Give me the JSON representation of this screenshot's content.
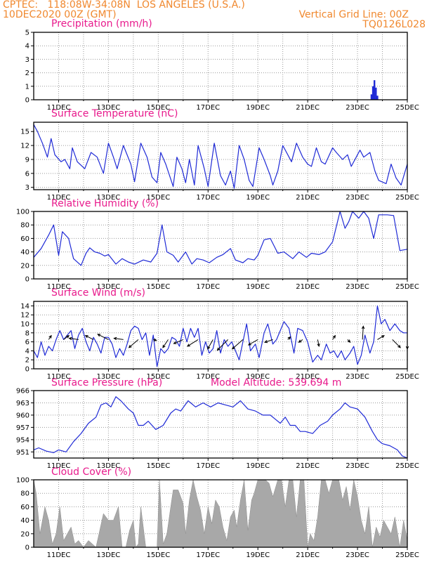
{
  "header": {
    "line1_left": "CPTEC:   118:08W-34:08N  LOS ANGELES (U.S.A.)",
    "line2_left": "10DEC2020 00Z (GMT)",
    "line2_right": "Vertical Grid Line: 00Z",
    "line3_right": "TQ0126L028"
  },
  "colors": {
    "header": "#f0882e",
    "title": "#e81a8c",
    "line": "#1f2ad6",
    "cloud": "#a8a8a8",
    "grid": "#9a9a9a"
  },
  "chart_data": [
    {
      "id": "precip",
      "type": "bar",
      "title": "Precipitation (mm/h)",
      "ylim": [
        0,
        5
      ],
      "yticks": [
        0,
        1,
        2,
        3,
        4,
        5
      ],
      "x_unit": "days after 10DEC2020 00Z",
      "xtick_labels": [
        "11DEC",
        "13DEC",
        "15DEC",
        "17DEC",
        "19DEC",
        "21DEC",
        "23DEC",
        "25DEC"
      ],
      "x": [
        13.56,
        13.62,
        13.68,
        13.74,
        13.8
      ],
      "values": [
        0.4,
        1.0,
        1.45,
        0.9,
        0.3
      ]
    },
    {
      "id": "temp",
      "type": "line",
      "title": "Surface Temperature (nC)",
      "ylim": [
        2.5,
        17
      ],
      "yticks": [
        3,
        6,
        9,
        12,
        15
      ],
      "xtick_labels": [
        "11DEC",
        "13DEC",
        "15DEC",
        "17DEC",
        "19DEC",
        "21DEC",
        "23DEC",
        "25DEC"
      ],
      "x": [
        0,
        0.15,
        0.35,
        0.55,
        0.7,
        0.85,
        1.1,
        1.25,
        1.45,
        1.55,
        1.75,
        2.05,
        2.3,
        2.55,
        2.8,
        3.0,
        3.2,
        3.35,
        3.6,
        3.9,
        4.05,
        4.3,
        4.55,
        4.75,
        4.95,
        5.1,
        5.3,
        5.6,
        5.75,
        5.95,
        6.1,
        6.25,
        6.45,
        6.6,
        6.85,
        7.0,
        7.25,
        7.5,
        7.7,
        7.9,
        8.05,
        8.25,
        8.45,
        8.65,
        8.8,
        9.05,
        9.25,
        9.5,
        9.6,
        9.8,
        10.0,
        10.2,
        10.35,
        10.55,
        10.8,
        11.0,
        11.15,
        11.35,
        11.55,
        11.7,
        12.0,
        12.15,
        12.4,
        12.6,
        12.75,
        13.1,
        13.25,
        13.5,
        13.7,
        13.85,
        14.15,
        14.35,
        14.55,
        14.75,
        15.0
      ],
      "values": [
        16.5,
        15,
        12.5,
        9.5,
        13.5,
        10,
        8.5,
        9,
        7,
        11.5,
        8.5,
        7,
        10.5,
        9.5,
        6,
        12.5,
        9.5,
        7,
        12,
        8,
        4.2,
        12.5,
        9.5,
        5.2,
        4,
        10.5,
        8,
        3.2,
        9.5,
        7,
        4,
        9,
        3.5,
        12,
        7,
        3.2,
        12.5,
        5.5,
        3.5,
        6.5,
        2.8,
        12,
        9,
        4.5,
        3.2,
        11.5,
        9,
        5.5,
        3.5,
        6.5,
        12,
        10,
        8.5,
        12.5,
        9.5,
        8,
        7.5,
        11.5,
        8.5,
        8,
        11.5,
        10.5,
        9,
        10,
        7.5,
        11,
        9.5,
        10.5,
        6.5,
        4.5,
        3.8,
        8,
        5,
        3.5,
        8
      ]
    },
    {
      "id": "rh",
      "type": "line",
      "title": "Relative Humidity (%)",
      "ylim": [
        0,
        100
      ],
      "yticks": [
        0,
        20,
        40,
        60,
        80,
        100
      ],
      "xtick_labels": [
        "11DEC",
        "13DEC",
        "15DEC",
        "17DEC",
        "19DEC",
        "21DEC",
        "23DEC",
        "25DEC"
      ],
      "x": [
        0,
        0.3,
        0.6,
        0.8,
        1.0,
        1.15,
        1.4,
        1.6,
        1.9,
        2.1,
        2.25,
        2.45,
        2.65,
        2.85,
        3.0,
        3.3,
        3.55,
        3.8,
        4.05,
        4.4,
        4.7,
        4.95,
        5.15,
        5.35,
        5.6,
        5.8,
        6.1,
        6.35,
        6.55,
        6.8,
        7.05,
        7.35,
        7.6,
        7.9,
        8.1,
        8.4,
        8.6,
        8.85,
        9.0,
        9.25,
        9.5,
        9.8,
        10.05,
        10.4,
        10.65,
        10.95,
        11.15,
        11.45,
        11.7,
        12.0,
        12.3,
        12.5,
        12.65,
        12.8,
        13.05,
        13.25,
        13.45,
        13.65,
        13.85,
        14.2,
        14.45,
        14.7,
        15.0
      ],
      "values": [
        32,
        45,
        65,
        80,
        35,
        70,
        60,
        30,
        20,
        38,
        46,
        40,
        38,
        34,
        36,
        22,
        30,
        25,
        22,
        28,
        25,
        38,
        80,
        40,
        35,
        25,
        40,
        22,
        30,
        28,
        24,
        32,
        36,
        45,
        28,
        24,
        30,
        28,
        35,
        58,
        60,
        38,
        40,
        30,
        40,
        32,
        38,
        36,
        40,
        55,
        100,
        75,
        85,
        100,
        90,
        100,
        90,
        60,
        95,
        95,
        94,
        42,
        44
      ]
    },
    {
      "id": "wind",
      "type": "line",
      "title": "Surface Wind (m/s)",
      "ylim": [
        0,
        15
      ],
      "yticks": [
        0,
        2,
        4,
        6,
        8,
        10,
        12,
        14
      ],
      "xtick_labels": [
        "11DEC",
        "13DEC",
        "15DEC",
        "17DEC",
        "19DEC",
        "21DEC",
        "23DEC",
        "25DEC"
      ],
      "x": [
        0,
        0.15,
        0.3,
        0.45,
        0.6,
        0.75,
        0.9,
        1.05,
        1.2,
        1.35,
        1.5,
        1.65,
        1.8,
        1.95,
        2.1,
        2.25,
        2.4,
        2.55,
        2.7,
        2.85,
        3.0,
        3.15,
        3.3,
        3.45,
        3.6,
        3.75,
        3.9,
        4.05,
        4.2,
        4.35,
        4.5,
        4.65,
        4.8,
        4.95,
        5.1,
        5.25,
        5.4,
        5.55,
        5.7,
        5.85,
        6.0,
        6.15,
        6.3,
        6.45,
        6.6,
        6.75,
        6.9,
        7.05,
        7.2,
        7.35,
        7.5,
        7.65,
        7.8,
        7.95,
        8.1,
        8.25,
        8.4,
        8.55,
        8.7,
        8.9,
        9.05,
        9.25,
        9.4,
        9.6,
        9.75,
        9.9,
        10.05,
        10.25,
        10.45,
        10.6,
        10.8,
        11.0,
        11.2,
        11.4,
        11.55,
        11.75,
        11.9,
        12.05,
        12.2,
        12.35,
        12.5,
        12.7,
        12.85,
        13.0,
        13.15,
        13.3,
        13.5,
        13.65,
        13.8,
        13.95,
        14.1,
        14.3,
        14.5,
        14.7,
        14.85,
        15.0
      ],
      "values": [
        4,
        2.5,
        6,
        3,
        5,
        4,
        6.5,
        8.5,
        6.5,
        7.5,
        8.5,
        4.5,
        7.5,
        9,
        6,
        4,
        7,
        5.5,
        3.5,
        7,
        7,
        5.5,
        2.5,
        4.5,
        3,
        5.5,
        8.5,
        9.5,
        9,
        6.5,
        8,
        3,
        7.5,
        0.5,
        4.5,
        3.5,
        4.5,
        7,
        6.5,
        5,
        9,
        6,
        9,
        7,
        9,
        3,
        6,
        3.5,
        4.5,
        8.5,
        3.5,
        6.5,
        5,
        6,
        4,
        2,
        6,
        10,
        4,
        5.5,
        2.5,
        8,
        10,
        5.5,
        6.5,
        8.5,
        10.5,
        9,
        3.5,
        9,
        8.5,
        6,
        1.5,
        3,
        2,
        5.5,
        3.5,
        4,
        2.5,
        4,
        2,
        3.5,
        5,
        1,
        3,
        7.5,
        3.5,
        6,
        14,
        10,
        11,
        8.5,
        10,
        8.5,
        8,
        8
      ],
      "arrows": [
        {
          "x": 0.6,
          "y": 6.5,
          "u": 1.0,
          "v": 1.5
        },
        {
          "x": 1.2,
          "y": 6.5,
          "u": 2.0,
          "v": 1.5
        },
        {
          "x": 1.8,
          "y": 6.5,
          "u": -3.5,
          "v": 0.5
        },
        {
          "x": 2.4,
          "y": 6.5,
          "u": -3.0,
          "v": 1.5
        },
        {
          "x": 3.0,
          "y": 6.5,
          "u": -4.0,
          "v": 2.0
        },
        {
          "x": 3.6,
          "y": 6.5,
          "u": -3.5,
          "v": 0.5
        },
        {
          "x": 4.2,
          "y": 6.5,
          "u": -3.5,
          "v": -3.0
        },
        {
          "x": 4.8,
          "y": 6.5,
          "u": 1.2,
          "v": -0.3
        },
        {
          "x": 5.4,
          "y": 6.5,
          "u": -2.0,
          "v": -3.0
        },
        {
          "x": 6.0,
          "y": 6.5,
          "u": -3.5,
          "v": -1.5
        },
        {
          "x": 6.6,
          "y": 6.5,
          "u": -4.0,
          "v": -2.5
        },
        {
          "x": 7.2,
          "y": 6.5,
          "u": -2.0,
          "v": -3.5
        },
        {
          "x": 7.8,
          "y": 6.5,
          "u": -4.0,
          "v": -4.0
        },
        {
          "x": 8.4,
          "y": 6.5,
          "u": -4.0,
          "v": -3.5
        },
        {
          "x": 9.0,
          "y": 6.5,
          "u": -3.5,
          "v": -2.0
        },
        {
          "x": 9.6,
          "y": 6.5,
          "u": -3.0,
          "v": -1.0
        },
        {
          "x": 10.2,
          "y": 6.5,
          "u": 1.0,
          "v": 1.0
        },
        {
          "x": 10.8,
          "y": 6.5,
          "u": -1.5,
          "v": -1.0
        },
        {
          "x": 11.4,
          "y": 6.5,
          "u": 0.5,
          "v": -2.5
        },
        {
          "x": 12.0,
          "y": 6.5,
          "u": 1.0,
          "v": 1.5
        },
        {
          "x": 12.6,
          "y": 6.5,
          "u": 1.0,
          "v": -1.0
        },
        {
          "x": 13.2,
          "y": 6.5,
          "u": 0.3,
          "v": 5.0
        },
        {
          "x": 13.8,
          "y": 6.5,
          "u": 2.5,
          "v": 1.5
        },
        {
          "x": 14.4,
          "y": 6.5,
          "u": 3.0,
          "v": -3.0
        },
        {
          "x": 15.0,
          "y": 6.5,
          "u": 0.0,
          "v": -3.5
        }
      ]
    },
    {
      "id": "pres",
      "type": "line",
      "title": "Surface Pressure (hPa)",
      "annotation": "Model Altitude: 539.694 m",
      "ylim": [
        949.5,
        966
      ],
      "yticks": [
        951,
        954,
        957,
        960,
        963,
        966
      ],
      "xtick_labels": [
        "11DEC",
        "13DEC",
        "15DEC",
        "17DEC",
        "19DEC",
        "21DEC",
        "23DEC",
        "25DEC"
      ],
      "x": [
        0,
        0.2,
        0.5,
        0.8,
        1.0,
        1.3,
        1.6,
        1.9,
        2.2,
        2.5,
        2.7,
        2.9,
        3.1,
        3.3,
        3.5,
        3.8,
        4.0,
        4.2,
        4.4,
        4.6,
        4.9,
        5.2,
        5.5,
        5.7,
        5.9,
        6.2,
        6.5,
        6.8,
        7.1,
        7.4,
        7.7,
        8.0,
        8.3,
        8.6,
        8.9,
        9.2,
        9.5,
        9.7,
        9.9,
        10.1,
        10.3,
        10.5,
        10.7,
        10.9,
        11.2,
        11.5,
        11.8,
        12.0,
        12.3,
        12.5,
        12.7,
        13.0,
        13.3,
        13.6,
        13.8,
        14.0,
        14.3,
        14.6,
        14.8,
        15.0
      ],
      "values": [
        951.5,
        952,
        951.2,
        950.8,
        951.5,
        951,
        953.5,
        955.5,
        958,
        959.5,
        962.5,
        963,
        962,
        964.5,
        963.5,
        961.5,
        960.5,
        957.5,
        957.5,
        958.5,
        956.5,
        957.5,
        960.5,
        961.5,
        961,
        963.5,
        962,
        963,
        962,
        963,
        962.5,
        962,
        963.5,
        961.5,
        961,
        960,
        960,
        959,
        958,
        959.5,
        957.5,
        957.5,
        956,
        956,
        955.5,
        957.5,
        958.5,
        960,
        961.5,
        963,
        962,
        961.5,
        959.5,
        956,
        954,
        953,
        952.5,
        951.5,
        950,
        949.5
      ]
    },
    {
      "id": "cloud",
      "type": "area",
      "title": "Cloud Cover (%)",
      "ylim": [
        0,
        100
      ],
      "yticks": [
        0,
        20,
        40,
        60,
        80,
        100
      ],
      "xtick_labels": [
        "11DEC",
        "13DEC",
        "15DEC",
        "17DEC",
        "19DEC",
        "21DEC",
        "23DEC",
        "25DEC"
      ],
      "x": [
        0,
        0.1,
        0.25,
        0.45,
        0.6,
        0.75,
        0.9,
        1.05,
        1.2,
        1.35,
        1.5,
        1.65,
        1.8,
        2.0,
        2.2,
        2.5,
        2.8,
        3.0,
        3.2,
        3.4,
        3.55,
        3.7,
        3.85,
        4.0,
        4.1,
        4.2,
        4.3,
        4.5,
        4.7,
        4.85,
        4.95,
        5.05,
        5.2,
        5.35,
        5.5,
        5.6,
        5.8,
        6.0,
        6.1,
        6.25,
        6.4,
        6.55,
        6.7,
        6.85,
        7.0,
        7.15,
        7.3,
        7.45,
        7.6,
        7.75,
        7.9,
        8.05,
        8.15,
        8.3,
        8.45,
        8.6,
        8.75,
        8.85,
        9.0,
        9.15,
        9.3,
        9.45,
        9.6,
        9.8,
        9.95,
        10.1,
        10.25,
        10.4,
        10.55,
        10.7,
        10.85,
        11.0,
        11.1,
        11.25,
        11.4,
        11.55,
        11.7,
        11.85,
        12.0,
        12.1,
        12.25,
        12.4,
        12.55,
        12.7,
        12.85,
        13.0,
        13.15,
        13.3,
        13.45,
        13.6,
        13.75,
        13.9,
        14.05,
        14.2,
        14.35,
        14.5,
        14.7,
        14.85,
        15.0
      ],
      "values": [
        100,
        80,
        20,
        60,
        40,
        5,
        20,
        60,
        10,
        20,
        30,
        5,
        10,
        0,
        10,
        0,
        50,
        40,
        40,
        60,
        0,
        0,
        25,
        40,
        0,
        5,
        60,
        0,
        0,
        0,
        0,
        100,
        5,
        20,
        60,
        85,
        85,
        65,
        20,
        70,
        100,
        75,
        55,
        20,
        60,
        35,
        70,
        60,
        30,
        10,
        45,
        55,
        30,
        70,
        100,
        25,
        70,
        80,
        100,
        100,
        100,
        95,
        75,
        100,
        100,
        60,
        100,
        100,
        45,
        100,
        100,
        0,
        20,
        10,
        45,
        100,
        100,
        80,
        100,
        100,
        100,
        70,
        90,
        55,
        100,
        75,
        40,
        20,
        60,
        0,
        30,
        15,
        40,
        30,
        20,
        45,
        0,
        40,
        10
      ]
    }
  ]
}
